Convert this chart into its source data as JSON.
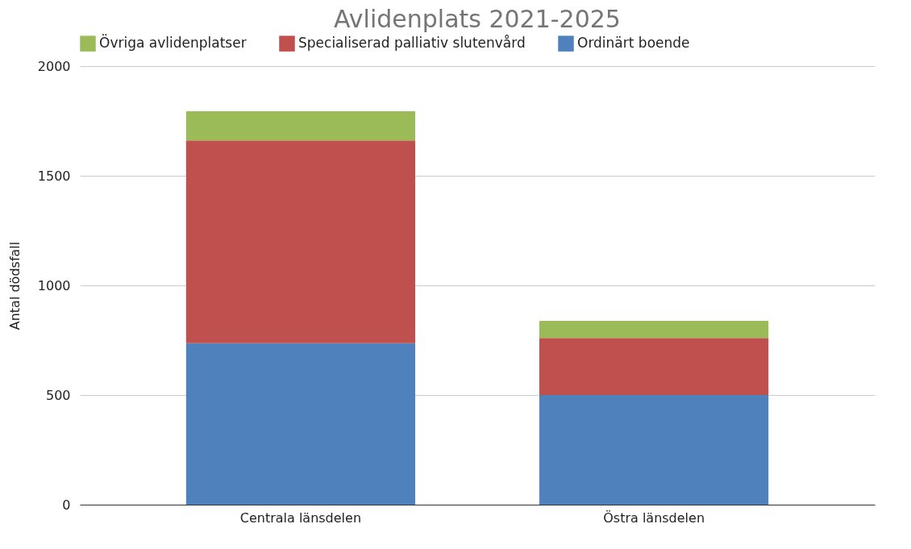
{
  "chart_data": {
    "type": "bar",
    "stacked": true,
    "title": "Avlidenplats 2021-2025",
    "ylabel": "Antal dödsfall",
    "categories": [
      "Centrala länsdelen",
      "Östra länsdelen"
    ],
    "series": [
      {
        "name": "Ordinärt boende",
        "color": "#4f81bd",
        "values": [
          736,
          500
        ]
      },
      {
        "name": "Specialiserad palliativ slutenvård",
        "color": "#c0504d",
        "values": [
          925,
          260
        ]
      },
      {
        "name": "Övriga avlidenplatser",
        "color": "#9bbb59",
        "values": [
          134,
          79
        ]
      }
    ],
    "ylim": [
      0,
      2000
    ],
    "yticks": [
      0,
      500,
      1000,
      1500,
      2000
    ],
    "grid": "y",
    "legend": "top"
  }
}
